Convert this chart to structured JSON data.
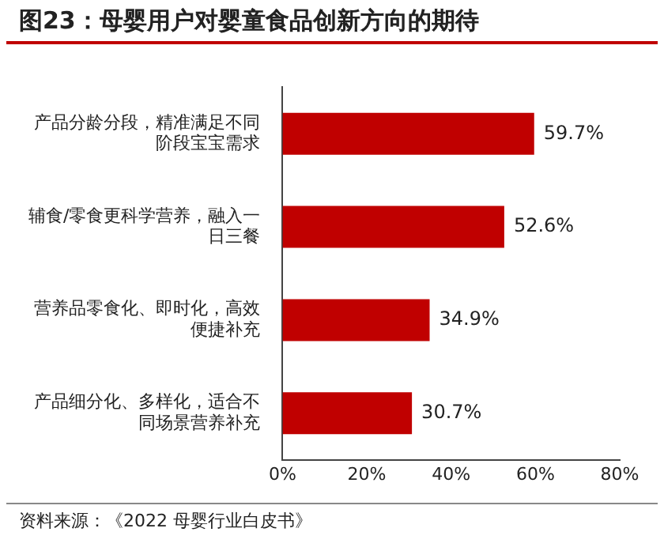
{
  "chart_data": {
    "type": "bar",
    "orientation": "horizontal",
    "title": "图23：母婴用户对婴童食品创新方向的期待",
    "categories": [
      "产品分龄分段，精准满足不同阶段宝宝需求",
      "辅食/零食更科学营养，融入一日三餐",
      "营养品零食化、即时化，高效便捷补充",
      "产品细分化、多样化，适合不同场景营养补充"
    ],
    "values": [
      59.7,
      52.6,
      34.9,
      30.7
    ],
    "color": "#c00000",
    "value_labels": [
      "59.7%",
      "52.6%",
      "34.9%",
      "30.7%"
    ],
    "xlim": [
      0,
      80
    ],
    "xticks": [
      {
        "value": 0,
        "label": "0%"
      },
      {
        "value": 20,
        "label": "20%"
      },
      {
        "value": 40,
        "label": "40%"
      },
      {
        "value": 60,
        "label": "60%"
      },
      {
        "value": 80,
        "label": "80%"
      }
    ],
    "grid": false,
    "legend": false,
    "annotations": [
      "资料来源：《2022 母婴行业白皮书》"
    ]
  }
}
